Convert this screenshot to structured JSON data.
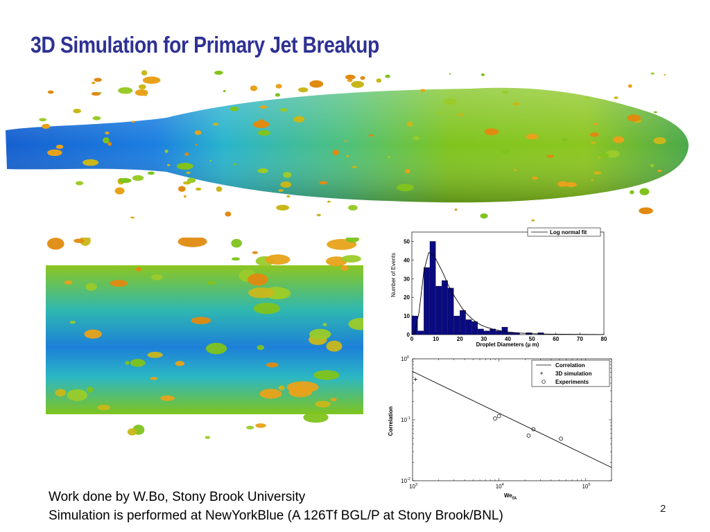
{
  "slide": {
    "title": "3D Simulation for Primary Jet Breakup",
    "credit_line1": "Work done by W.Bo, Stony Brook University",
    "credit_line2": "Simulation is performed at NewYorkBlue (A 126Tf BGL/P at Stony Brook/BNL)",
    "page_number": "2"
  },
  "colors": {
    "title": "#2e3193",
    "jet_core": "#1a6fd6",
    "jet_mid": "#2bb3c9",
    "jet_green": "#7fc31c",
    "droplet_orange": "#e8a21a",
    "hist_bar": "#0a0a80"
  },
  "chart_data": [
    {
      "type": "bar",
      "xlabel": "Droplet Diameters (μ m)",
      "ylabel": "Number of Events",
      "xlim": [
        0,
        80
      ],
      "ylim": [
        0,
        55
      ],
      "xticks": [
        "0",
        "10",
        "20",
        "30",
        "40",
        "50",
        "60",
        "70",
        "80"
      ],
      "yticks": [
        "0",
        "10",
        "20",
        "30",
        "40",
        "50"
      ],
      "bin_width": 2.5,
      "x": [
        1.25,
        3.75,
        6.25,
        8.75,
        11.25,
        13.75,
        16.25,
        18.75,
        21.25,
        23.75,
        26.25,
        28.75,
        31.25,
        33.75,
        36.25,
        38.75,
        41.25,
        43.75,
        46.25,
        48.75,
        51.25,
        53.75
      ],
      "values": [
        10,
        2,
        36,
        50,
        26,
        29,
        25,
        10,
        13,
        8,
        7,
        3,
        2,
        3,
        2,
        4,
        1,
        1,
        0,
        1,
        0,
        1
      ],
      "legend": "Log normal fit",
      "legend_position": "top-right",
      "series": [
        {
          "name": "Log normal fit",
          "type": "line",
          "x": [
            1,
            3,
            5,
            7,
            9,
            11,
            13,
            15,
            17,
            19,
            21,
            23,
            25,
            27,
            29,
            31,
            34,
            37,
            40,
            45,
            50,
            55,
            60,
            70,
            80
          ],
          "values": [
            0,
            12,
            34,
            44,
            43,
            38,
            33,
            27,
            22,
            18,
            14,
            11,
            8.5,
            6.5,
            5,
            4,
            2.8,
            2,
            1.4,
            0.8,
            0.5,
            0.3,
            0.2,
            0.1,
            0
          ]
        }
      ]
    },
    {
      "type": "scatter",
      "xlabel": "We",
      "xlabel_sub": "fA",
      "ylabel": "Correlation",
      "x_scale": "log",
      "y_scale": "log",
      "xlim": [
        1000,
        200000
      ],
      "ylim": [
        0.01,
        1
      ],
      "xticks": [
        "10",
        "10",
        "10"
      ],
      "xtick_exp": [
        "3",
        "4",
        "5"
      ],
      "yticks": [
        "10",
        "10",
        "10"
      ],
      "ytick_exp": [
        "-2",
        "-1",
        "0"
      ],
      "legend_position": "top-right",
      "series": [
        {
          "name": "Correlation",
          "type": "line",
          "x": [
            1000,
            200000
          ],
          "values": [
            0.62,
            0.0165
          ]
        },
        {
          "name": "3D simulation",
          "marker": "+",
          "x": [
            1080
          ],
          "values": [
            0.46
          ]
        },
        {
          "name": "Experiments",
          "marker": "o",
          "x": [
            9000,
            10000,
            22000,
            25000,
            52000
          ],
          "values": [
            0.105,
            0.115,
            0.055,
            0.07,
            0.049
          ]
        }
      ]
    }
  ]
}
